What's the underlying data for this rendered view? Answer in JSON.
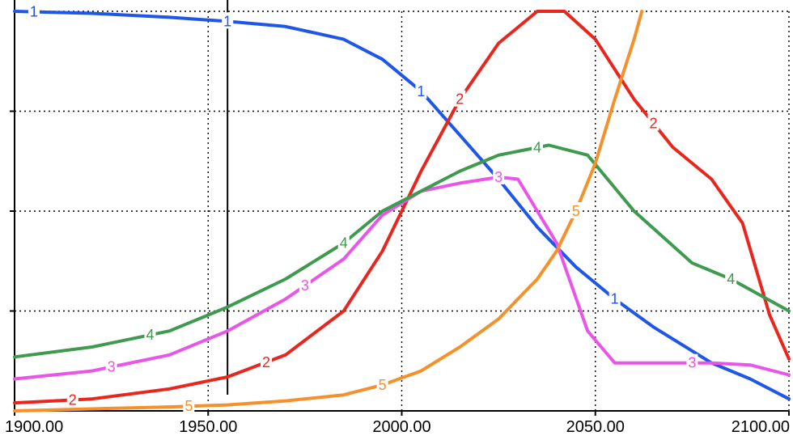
{
  "chart_data": {
    "type": "line",
    "title": "",
    "xlabel": "",
    "ylabel": "",
    "xlim": [
      1900,
      2100
    ],
    "ylim": [
      0,
      1
    ],
    "grid": true,
    "legend": "inline numeric markers on each curve",
    "x_tick_labels": [
      "1900.00",
      "1950.00",
      "2000.00",
      "2050.00",
      "2100.00"
    ],
    "x_ticks": [
      1900,
      1950,
      2000,
      2050,
      2100
    ],
    "y_ticks": [
      0.25,
      0.5,
      0.75
    ],
    "vertical_marker_x": 1955,
    "colors": {
      "1": "#1e56e8",
      "2": "#e8261e",
      "3": "#e955e9",
      "4": "#3e9a4e",
      "5": "#f5902a"
    },
    "series": [
      {
        "label": "1",
        "color": "#1e56e8",
        "points": [
          [
            1900,
            1.0
          ],
          [
            1920,
            0.995
          ],
          [
            1940,
            0.985
          ],
          [
            1955,
            0.975
          ],
          [
            1970,
            0.962
          ],
          [
            1985,
            0.93
          ],
          [
            1995,
            0.88
          ],
          [
            2005,
            0.8
          ],
          [
            2015,
            0.69
          ],
          [
            2025,
            0.58
          ],
          [
            2035,
            0.46
          ],
          [
            2045,
            0.36
          ],
          [
            2055,
            0.28
          ],
          [
            2065,
            0.21
          ],
          [
            2080,
            0.12
          ],
          [
            2090,
            0.08
          ],
          [
            2100,
            0.03
          ]
        ],
        "marker_x": [
          1905,
          1955,
          2005,
          2055
        ]
      },
      {
        "label": "2",
        "color": "#e8261e",
        "points": [
          [
            1900,
            0.02
          ],
          [
            1920,
            0.03
          ],
          [
            1940,
            0.055
          ],
          [
            1955,
            0.085
          ],
          [
            1970,
            0.14
          ],
          [
            1985,
            0.25
          ],
          [
            1995,
            0.4
          ],
          [
            2005,
            0.6
          ],
          [
            2015,
            0.78
          ],
          [
            2025,
            0.92
          ],
          [
            2035,
            1.0
          ],
          [
            2042,
            1.0
          ],
          [
            2050,
            0.93
          ],
          [
            2060,
            0.78
          ],
          [
            2070,
            0.66
          ],
          [
            2080,
            0.58
          ],
          [
            2088,
            0.47
          ],
          [
            2095,
            0.24
          ],
          [
            2100,
            0.13
          ]
        ],
        "marker_x": [
          1915,
          1965,
          2015,
          2065
        ]
      },
      {
        "label": "3",
        "color": "#e955e9",
        "points": [
          [
            1900,
            0.08
          ],
          [
            1920,
            0.1
          ],
          [
            1940,
            0.14
          ],
          [
            1955,
            0.2
          ],
          [
            1970,
            0.28
          ],
          [
            1985,
            0.38
          ],
          [
            1995,
            0.49
          ],
          [
            2005,
            0.55
          ],
          [
            2015,
            0.57
          ],
          [
            2025,
            0.585
          ],
          [
            2030,
            0.58
          ],
          [
            2040,
            0.42
          ],
          [
            2048,
            0.2
          ],
          [
            2055,
            0.12
          ],
          [
            2065,
            0.12
          ],
          [
            2080,
            0.12
          ],
          [
            2090,
            0.115
          ],
          [
            2100,
            0.09
          ]
        ],
        "marker_x": [
          1925,
          1975,
          2025,
          2075
        ]
      },
      {
        "label": "4",
        "color": "#3e9a4e",
        "points": [
          [
            1900,
            0.135
          ],
          [
            1920,
            0.16
          ],
          [
            1940,
            0.2
          ],
          [
            1955,
            0.26
          ],
          [
            1970,
            0.33
          ],
          [
            1985,
            0.42
          ],
          [
            1995,
            0.5
          ],
          [
            2005,
            0.55
          ],
          [
            2015,
            0.6
          ],
          [
            2025,
            0.64
          ],
          [
            2038,
            0.665
          ],
          [
            2048,
            0.64
          ],
          [
            2060,
            0.5
          ],
          [
            2075,
            0.37
          ],
          [
            2085,
            0.33
          ],
          [
            2100,
            0.25
          ]
        ],
        "marker_x": [
          1935,
          1985,
          2035,
          2085
        ]
      },
      {
        "label": "5",
        "color": "#f5902a",
        "points": [
          [
            1900,
            0.0
          ],
          [
            1920,
            0.005
          ],
          [
            1940,
            0.01
          ],
          [
            1955,
            0.015
          ],
          [
            1970,
            0.025
          ],
          [
            1985,
            0.04
          ],
          [
            1995,
            0.065
          ],
          [
            2005,
            0.1
          ],
          [
            2015,
            0.16
          ],
          [
            2025,
            0.23
          ],
          [
            2035,
            0.33
          ],
          [
            2040,
            0.4
          ],
          [
            2045,
            0.5
          ],
          [
            2050,
            0.62
          ],
          [
            2055,
            0.78
          ],
          [
            2060,
            0.93
          ],
          [
            2062,
            1.0
          ]
        ],
        "marker_x": [
          1945,
          1995,
          2045
        ]
      }
    ]
  }
}
